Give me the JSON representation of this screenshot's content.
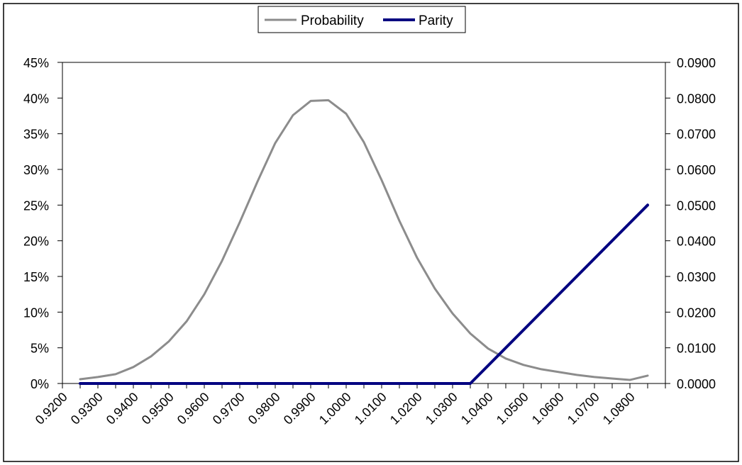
{
  "chart_data": {
    "type": "line",
    "legend": {
      "position": "top-center",
      "entries": [
        "Probability",
        "Parity"
      ]
    },
    "colors": {
      "Probability": "#8c8c8c",
      "Parity": "#000080",
      "grid": "#a0a0a0"
    },
    "grid": "y-major",
    "xlim": [
      0.92,
      1.09
    ],
    "x_ticks": [
      "0.9200",
      "0.9300",
      "0.9400",
      "0.9500",
      "0.9600",
      "0.9700",
      "0.9800",
      "0.9900",
      "1.0000",
      "1.0100",
      "1.0200",
      "1.0300",
      "1.0400",
      "1.0500",
      "1.0600",
      "1.0700",
      "1.0800"
    ],
    "y_left": {
      "lim": [
        0,
        45
      ],
      "ticks": [
        "0%",
        "5%",
        "10%",
        "15%",
        "20%",
        "25%",
        "30%",
        "35%",
        "40%",
        "45%"
      ]
    },
    "y_right": {
      "lim": [
        0,
        0.09
      ],
      "ticks": [
        "0.0000",
        "0.0100",
        "0.0200",
        "0.0300",
        "0.0400",
        "0.0500",
        "0.0600",
        "0.0700",
        "0.0800",
        "0.0900"
      ]
    },
    "series": [
      {
        "name": "Probability",
        "axis": "left",
        "x": [
          0.925,
          0.93,
          0.935,
          0.94,
          0.945,
          0.95,
          0.955,
          0.96,
          0.965,
          0.97,
          0.975,
          0.98,
          0.985,
          0.99,
          0.995,
          1.0,
          1.005,
          1.01,
          1.015,
          1.02,
          1.025,
          1.03,
          1.035,
          1.04,
          1.045,
          1.05,
          1.055,
          1.06,
          1.065,
          1.07,
          1.075,
          1.08,
          1.085
        ],
        "y": [
          0.6,
          0.9,
          1.3,
          2.3,
          3.8,
          5.9,
          8.7,
          12.5,
          17.2,
          22.6,
          28.3,
          33.7,
          37.6,
          39.6,
          39.7,
          37.8,
          33.8,
          28.5,
          22.8,
          17.6,
          13.3,
          9.8,
          7.0,
          4.9,
          3.5,
          2.6,
          2.0,
          1.6,
          1.2,
          0.9,
          0.7,
          0.5,
          1.1
        ]
      },
      {
        "name": "Parity",
        "axis": "right",
        "x": [
          0.925,
          1.035,
          1.085
        ],
        "y": [
          0.0,
          0.0,
          0.05
        ]
      }
    ]
  }
}
